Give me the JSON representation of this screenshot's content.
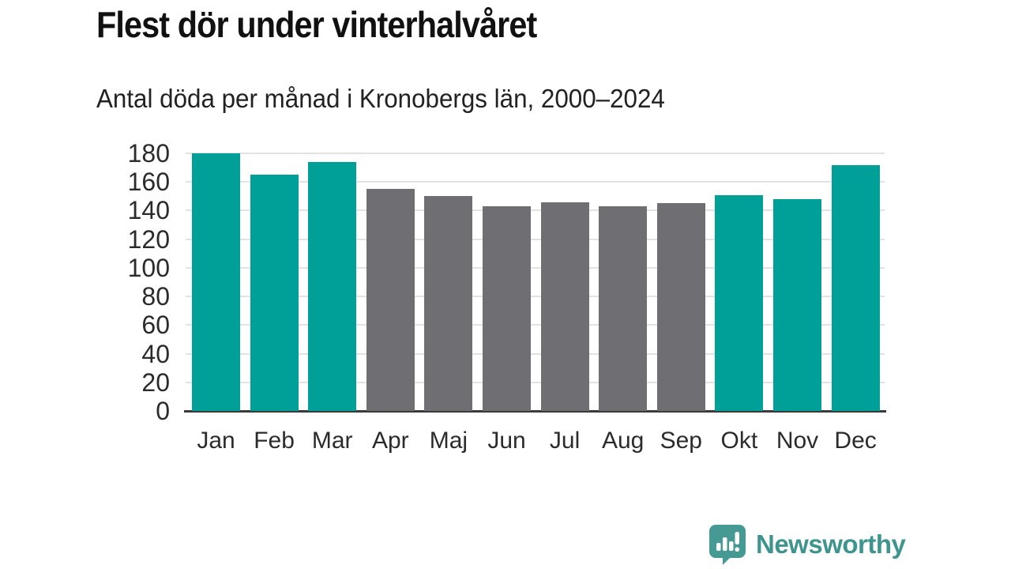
{
  "chart_data": {
    "type": "bar",
    "title": "Flest dör under vinterhalvåret",
    "subtitle": "Antal döda per månad i Kronobergs län, 2000–2024",
    "categories": [
      "Jan",
      "Feb",
      "Mar",
      "Apr",
      "Maj",
      "Jun",
      "Jul",
      "Aug",
      "Sep",
      "Okt",
      "Nov",
      "Dec"
    ],
    "values": [
      180,
      165,
      174,
      155,
      150,
      143,
      146,
      143,
      145,
      151,
      148,
      172
    ],
    "bar_colors": [
      "winter",
      "winter",
      "winter",
      "summer",
      "summer",
      "summer",
      "summer",
      "summer",
      "summer",
      "winter",
      "winter",
      "winter"
    ],
    "palette": {
      "winter": "#00a099",
      "summer": "#6e6e73"
    },
    "ylim": [
      0,
      180
    ],
    "ytick_step": 20,
    "yticks": [
      0,
      20,
      40,
      60,
      80,
      100,
      120,
      140,
      160,
      180
    ],
    "grid": true,
    "legend": "none",
    "xlabel": "",
    "ylabel": ""
  },
  "footer": {
    "brand": "Newsworthy",
    "brand_color": "#3e948e",
    "logo_icon": "speech-bubble-bar-chart"
  }
}
